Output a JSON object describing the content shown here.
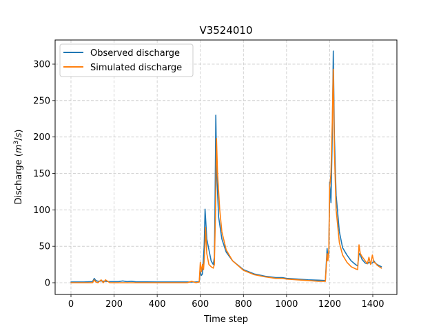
{
  "chart_data": {
    "type": "line",
    "title": "V3524010",
    "xlabel": "Time step",
    "ylabel": "Discharge (m³/s)",
    "xlim": [
      -70,
      1510
    ],
    "ylim": [
      -16,
      332
    ],
    "xticks": [
      0,
      200,
      400,
      600,
      800,
      1000,
      1200,
      1400
    ],
    "yticks": [
      0,
      50,
      100,
      150,
      200,
      250,
      300
    ],
    "grid": true,
    "legend_position": "upper left",
    "series": [
      {
        "name": "Observed discharge",
        "color": "#1f77b4",
        "x": [
          0,
          60,
          100,
          108,
          115,
          125,
          140,
          160,
          180,
          220,
          240,
          260,
          280,
          300,
          400,
          500,
          540,
          580,
          595,
          600,
          605,
          610,
          618,
          622,
          630,
          650,
          660,
          665,
          668,
          672,
          676,
          685,
          700,
          720,
          750,
          800,
          850,
          900,
          950,
          980,
          1000,
          1050,
          1100,
          1150,
          1180,
          1188,
          1192,
          1196,
          1200,
          1206,
          1212,
          1217,
          1222,
          1230,
          1245,
          1260,
          1280,
          1300,
          1320,
          1330,
          1336,
          1342,
          1350,
          1365,
          1375,
          1382,
          1390,
          1398,
          1405,
          1412,
          1420,
          1440
        ],
        "values": [
          1,
          1,
          1.5,
          6,
          3,
          2,
          2.5,
          2,
          1.5,
          1.5,
          2.5,
          1.5,
          2,
          1.2,
          1,
          1,
          1,
          1,
          1.5,
          15,
          10,
          12,
          50,
          101,
          60,
          30,
          25,
          35,
          100,
          230,
          150,
          90,
          60,
          42,
          30,
          18,
          12,
          9,
          7,
          7,
          6,
          5,
          4,
          3.5,
          3,
          47,
          35,
          40,
          138,
          110,
          200,
          318,
          200,
          120,
          70,
          48,
          38,
          30,
          25,
          23,
          40,
          38,
          32,
          27,
          26,
          28,
          27,
          27,
          30,
          27,
          25,
          22
        ]
      },
      {
        "name": "Simulated discharge",
        "color": "#ff7f0e",
        "x": [
          0,
          60,
          100,
          108,
          115,
          125,
          140,
          150,
          160,
          180,
          220,
          300,
          400,
          500,
          540,
          560,
          580,
          595,
          600,
          605,
          610,
          615,
          620,
          624,
          630,
          640,
          650,
          660,
          665,
          670,
          675,
          680,
          690,
          700,
          720,
          750,
          800,
          850,
          900,
          950,
          980,
          1000,
          1050,
          1100,
          1150,
          1180,
          1188,
          1192,
          1196,
          1200,
          1206,
          1212,
          1217,
          1222,
          1230,
          1245,
          1260,
          1280,
          1300,
          1320,
          1330,
          1336,
          1342,
          1350,
          1365,
          1375,
          1382,
          1390,
          1398,
          1405,
          1412,
          1420,
          1440
        ],
        "values": [
          0,
          0,
          0,
          4,
          1,
          0,
          4,
          0,
          4,
          0,
          0,
          0,
          0,
          0,
          0,
          2,
          0,
          1,
          28,
          15,
          25,
          18,
          40,
          76,
          40,
          25,
          22,
          20,
          25,
          90,
          198,
          150,
          100,
          70,
          45,
          30,
          17,
          11,
          8,
          6,
          6,
          5,
          4,
          3,
          2,
          2,
          40,
          30,
          45,
          130,
          150,
          220,
          293,
          180,
          100,
          55,
          38,
          28,
          22,
          19,
          18,
          52,
          40,
          36,
          30,
          26,
          35,
          25,
          38,
          28,
          27,
          24,
          20
        ]
      }
    ]
  },
  "labels": {
    "title": "V3524010",
    "xlabel": "Time step",
    "ylabel_prefix": "Discharge (",
    "ylabel_m": "m",
    "ylabel_exp": "3",
    "ylabel_suffix": "/s)",
    "ylabel_s": "s",
    "legend": [
      "Observed discharge",
      "Simulated discharge"
    ]
  }
}
